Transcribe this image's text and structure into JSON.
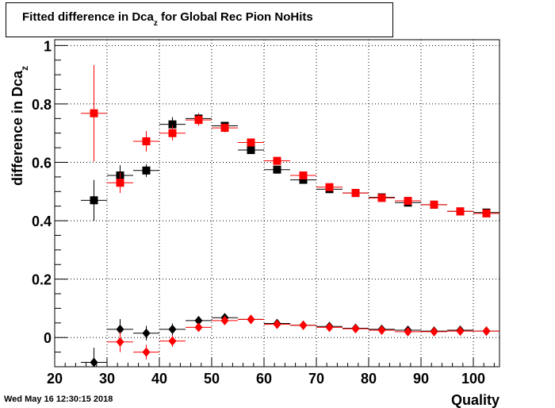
{
  "title": {
    "main": "Fitted difference in Dca",
    "sub": "z",
    "rest": " for Global Rec Pion NoHits"
  },
  "timestamp": "Wed May 16 12:30:15 2018",
  "colors": {
    "series_black": "#000000",
    "series_red": "#ff0000"
  },
  "chart_data": {
    "type": "scatter",
    "xlabel": "Quality",
    "ylabel": "difference in Dca",
    "ylabel_sub": "z",
    "xlim": [
      20,
      105
    ],
    "ylim": [
      -0.1,
      1.02
    ],
    "grid": true,
    "x_ticks": [
      20,
      30,
      40,
      50,
      60,
      70,
      80,
      90,
      100
    ],
    "y_ticks": [
      0,
      0.2,
      0.4,
      0.6,
      0.8,
      1
    ],
    "y_tick_labels": [
      "0",
      "0.2",
      "0.4",
      "0.6",
      "0.8",
      "1"
    ],
    "series": [
      {
        "color": "#000000",
        "marker": "square",
        "points": [
          {
            "x": 27.5,
            "y": 0.47,
            "err": 0.07
          },
          {
            "x": 32.5,
            "y": 0.555,
            "err": 0.035
          },
          {
            "x": 37.5,
            "y": 0.572,
            "err": 0.022
          },
          {
            "x": 42.5,
            "y": 0.73,
            "err": 0.025
          },
          {
            "x": 47.5,
            "y": 0.75,
            "err": 0.018
          },
          {
            "x": 52.5,
            "y": 0.725,
            "err": 0.012
          },
          {
            "x": 57.5,
            "y": 0.642,
            "err": 0.008
          },
          {
            "x": 62.5,
            "y": 0.575,
            "err": 0.006
          },
          {
            "x": 67.5,
            "y": 0.54,
            "err": 0.005
          },
          {
            "x": 72.5,
            "y": 0.508,
            "err": 0.005
          },
          {
            "x": 77.5,
            "y": 0.495,
            "err": 0.004
          },
          {
            "x": 82.5,
            "y": 0.48,
            "err": 0.004
          },
          {
            "x": 87.5,
            "y": 0.462,
            "err": 0.004
          },
          {
            "x": 92.5,
            "y": 0.455,
            "err": 0.004
          },
          {
            "x": 97.5,
            "y": 0.432,
            "err": 0.004
          },
          {
            "x": 102.5,
            "y": 0.428,
            "err": 0.004
          }
        ]
      },
      {
        "color": "#ff0000",
        "marker": "square",
        "points": [
          {
            "x": 27.5,
            "y": 0.768,
            "err": 0.165
          },
          {
            "x": 32.5,
            "y": 0.53,
            "err": 0.035
          },
          {
            "x": 37.5,
            "y": 0.672,
            "err": 0.035
          },
          {
            "x": 42.5,
            "y": 0.7,
            "err": 0.025
          },
          {
            "x": 47.5,
            "y": 0.745,
            "err": 0.02
          },
          {
            "x": 52.5,
            "y": 0.718,
            "err": 0.015
          },
          {
            "x": 57.5,
            "y": 0.668,
            "err": 0.01
          },
          {
            "x": 62.5,
            "y": 0.605,
            "err": 0.008
          },
          {
            "x": 67.5,
            "y": 0.555,
            "err": 0.007
          },
          {
            "x": 72.5,
            "y": 0.515,
            "err": 0.006
          },
          {
            "x": 77.5,
            "y": 0.495,
            "err": 0.005
          },
          {
            "x": 82.5,
            "y": 0.478,
            "err": 0.005
          },
          {
            "x": 87.5,
            "y": 0.468,
            "err": 0.005
          },
          {
            "x": 92.5,
            "y": 0.455,
            "err": 0.005
          },
          {
            "x": 97.5,
            "y": 0.432,
            "err": 0.005
          },
          {
            "x": 102.5,
            "y": 0.425,
            "err": 0.005
          }
        ]
      },
      {
        "color": "#000000",
        "marker": "diamond",
        "points": [
          {
            "x": 27.5,
            "y": -0.085,
            "err": 0.05
          },
          {
            "x": 32.5,
            "y": 0.028,
            "err": 0.035
          },
          {
            "x": 37.5,
            "y": 0.015,
            "err": 0.025
          },
          {
            "x": 42.5,
            "y": 0.028,
            "err": 0.02
          },
          {
            "x": 47.5,
            "y": 0.058,
            "err": 0.012
          },
          {
            "x": 52.5,
            "y": 0.068,
            "err": 0.008
          },
          {
            "x": 57.5,
            "y": 0.062,
            "err": 0.006
          },
          {
            "x": 62.5,
            "y": 0.048,
            "err": 0.005
          },
          {
            "x": 67.5,
            "y": 0.042,
            "err": 0.004
          },
          {
            "x": 72.5,
            "y": 0.038,
            "err": 0.004
          },
          {
            "x": 77.5,
            "y": 0.032,
            "err": 0.004
          },
          {
            "x": 82.5,
            "y": 0.028,
            "err": 0.004
          },
          {
            "x": 87.5,
            "y": 0.025,
            "err": 0.004
          },
          {
            "x": 92.5,
            "y": 0.022,
            "err": 0.004
          },
          {
            "x": 97.5,
            "y": 0.025,
            "err": 0.004
          },
          {
            "x": 102.5,
            "y": 0.022,
            "err": 0.004
          }
        ]
      },
      {
        "color": "#ff0000",
        "marker": "diamond",
        "points": [
          {
            "x": 32.5,
            "y": -0.015,
            "err": 0.035
          },
          {
            "x": 37.5,
            "y": -0.05,
            "err": 0.025
          },
          {
            "x": 42.5,
            "y": -0.012,
            "err": 0.02
          },
          {
            "x": 47.5,
            "y": 0.035,
            "err": 0.012
          },
          {
            "x": 52.5,
            "y": 0.058,
            "err": 0.008
          },
          {
            "x": 57.5,
            "y": 0.062,
            "err": 0.006
          },
          {
            "x": 62.5,
            "y": 0.045,
            "err": 0.005
          },
          {
            "x": 67.5,
            "y": 0.042,
            "err": 0.004
          },
          {
            "x": 72.5,
            "y": 0.035,
            "err": 0.004
          },
          {
            "x": 77.5,
            "y": 0.03,
            "err": 0.004
          },
          {
            "x": 82.5,
            "y": 0.025,
            "err": 0.004
          },
          {
            "x": 87.5,
            "y": 0.02,
            "err": 0.004
          },
          {
            "x": 92.5,
            "y": 0.02,
            "err": 0.004
          },
          {
            "x": 97.5,
            "y": 0.022,
            "err": 0.004
          },
          {
            "x": 102.5,
            "y": 0.022,
            "err": 0.004
          }
        ]
      }
    ]
  }
}
